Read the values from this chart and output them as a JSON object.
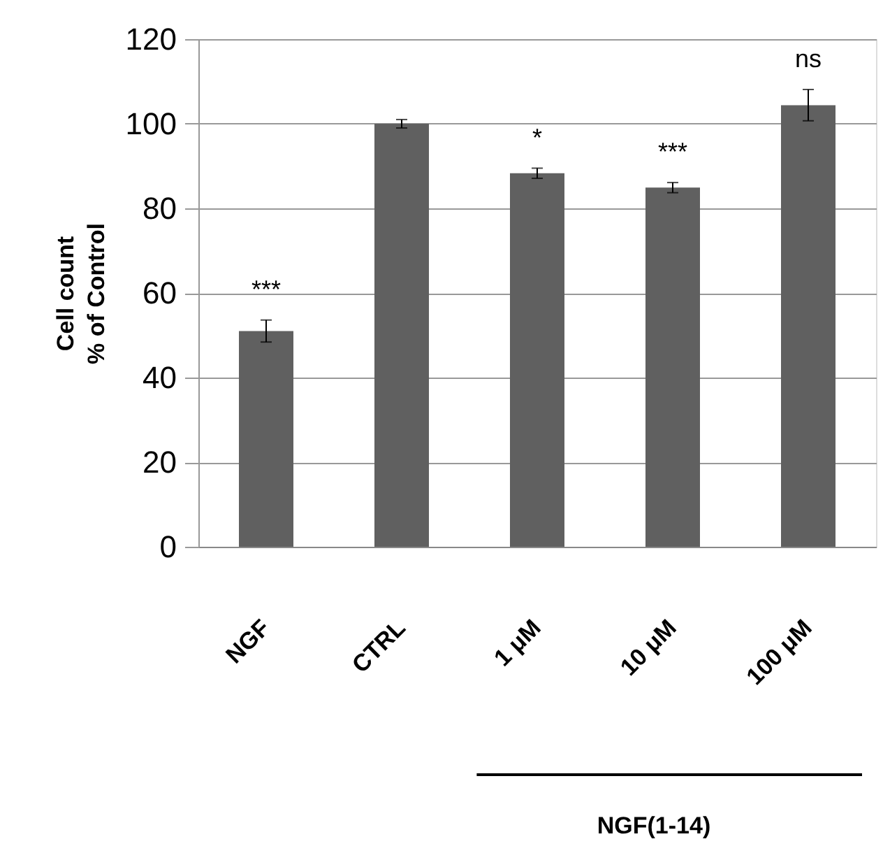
{
  "chart_data": {
    "type": "bar",
    "ylabel": "Cell count\n% of Control",
    "categories": [
      "NGF",
      "CTRL",
      "1 μM",
      "10 μM",
      "100 μM"
    ],
    "values": [
      51,
      100,
      88.3,
      84.9,
      104.4
    ],
    "errors": [
      2.6,
      1,
      1.2,
      1.2,
      3.7
    ],
    "color": "#606060",
    "ylim": [
      0,
      120
    ],
    "yticks": [
      0,
      20,
      40,
      60,
      80,
      100,
      120
    ],
    "grid": "y",
    "annotations": [
      {
        "text": "***",
        "x": "NGF",
        "y": 51
      },
      {
        "text": "*",
        "x": "1 μM",
        "y": 88.3
      },
      {
        "text": "***",
        "x": "10 μM",
        "y": 84.9
      },
      {
        "text": "ns",
        "x": "100 μM",
        "y": 104.4
      },
      "NGF(1-14)"
    ]
  }
}
